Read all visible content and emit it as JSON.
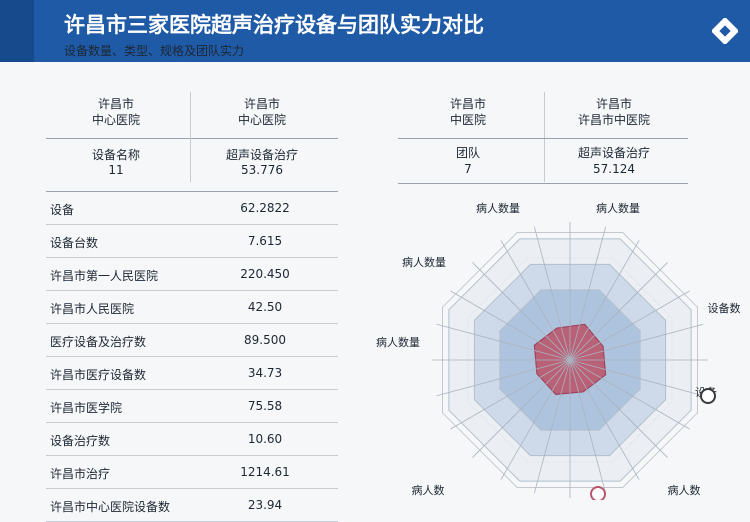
{
  "header": {
    "title": "许昌市三家医院超声治疗设备与团队实力对比",
    "subtitle": "设备数量、类型、规格及团队实力"
  },
  "left_table": {
    "columns": [
      "许昌市\n中心医院",
      "许昌市\n中心医院"
    ],
    "sub_row": [
      "设备名称\n11",
      "超声设备治疗\n53.776"
    ],
    "rows": [
      {
        "label": "设备",
        "value": "62.2822"
      },
      {
        "label": "设备台数",
        "value": "7.615"
      },
      {
        "label": "许昌市第一人民医院",
        "value": "220.450"
      },
      {
        "label": "许昌市人民医院",
        "value": "42.50"
      },
      {
        "label": "医疗设备及治疗数",
        "value": "89.500"
      },
      {
        "label": "许昌市医疗设备数",
        "value": "34.73"
      },
      {
        "label": "许昌市医学院",
        "value": "75.58"
      },
      {
        "label": "设备治疗数",
        "value": "10.60"
      },
      {
        "label": "许昌市治疗",
        "value": "1214.61"
      },
      {
        "label": "许昌市中心医院设备数",
        "value": "23.94"
      }
    ]
  },
  "right_table": {
    "columns": [
      "许昌市\n中医院",
      "许昌市\n许昌市中医院"
    ],
    "sub_row": [
      "团队\n7",
      "超声设备治疗\n57.124"
    ]
  },
  "chart_data": {
    "type": "radar",
    "axes": [
      "病人数量",
      "病人数量",
      "设备数",
      "设备",
      "病人数",
      "病人数",
      "病人数量",
      "病人数量"
    ],
    "series": [
      {
        "values": [
          0.95,
          0.95,
          0.95,
          0.95,
          0.95,
          0.95,
          0.95,
          0.95
        ],
        "color": "#e9edf2"
      },
      {
        "values": [
          0.75,
          0.75,
          0.75,
          0.75,
          0.75,
          0.75,
          0.75,
          0.75
        ],
        "color": "#c9d6e6"
      },
      {
        "values": [
          0.55,
          0.55,
          0.55,
          0.55,
          0.55,
          0.55,
          0.55,
          0.55
        ],
        "color": "#a8bfdc"
      },
      {
        "values": [
          0.28,
          0.26,
          0.28,
          0.25,
          0.27,
          0.26,
          0.28,
          0.25
        ],
        "color": "#b9566b"
      }
    ],
    "range": [
      0,
      1
    ],
    "grid": true
  },
  "colors": {
    "header": "#1f5aa6",
    "accent": "#b9566b"
  }
}
